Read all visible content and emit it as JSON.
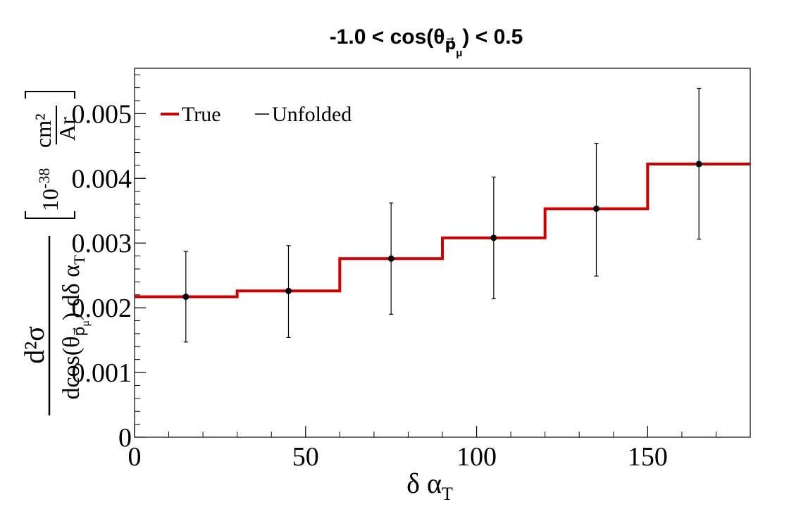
{
  "chart_data": {
    "type": "step",
    "title_main": "-1.0 < cos(θ",
    "title_sub": "p⃗",
    "title_subsub": "μ",
    "title_end": ") < 0.5",
    "xlabel_main": "δ α",
    "xlabel_sub": "T",
    "ylabel": {
      "numerator": "d²σ",
      "denominator_a": "dcos(θ",
      "denominator_sub": "p⃗",
      "denominator_subsub": "μ",
      "denominator_b": ") dδ α",
      "denominator_b_sub": "T",
      "unit_prefix": "10",
      "unit_exp": "-38",
      "unit_num": "cm²",
      "unit_den": "Ar"
    },
    "xlim": [
      0,
      180
    ],
    "ylim": [
      0,
      0.0057
    ],
    "xticks": [
      0,
      50,
      100,
      150
    ],
    "xtick_labels": [
      "0",
      "50",
      "100",
      "150"
    ],
    "yticks": [
      0,
      0.001,
      0.002,
      0.003,
      0.004,
      0.005
    ],
    "ytick_labels": [
      "0",
      "0.001",
      "0.002",
      "0.003",
      "0.004",
      "0.005"
    ],
    "bin_edges": [
      0,
      30,
      60,
      90,
      120,
      150,
      180
    ],
    "series": [
      {
        "name": "True",
        "color": "#cc0000",
        "values": [
          0.00217,
          0.00226,
          0.00276,
          0.00308,
          0.00353,
          0.00422
        ]
      },
      {
        "name": "Unfolded",
        "color": "#000000",
        "x": [
          15,
          45,
          75,
          105,
          135,
          165
        ],
        "values": [
          0.00217,
          0.00226,
          0.00276,
          0.00308,
          0.00353,
          0.00422
        ],
        "err_low": [
          0.00147,
          0.00154,
          0.0019,
          0.00214,
          0.00249,
          0.00306
        ],
        "err_high": [
          0.00287,
          0.00296,
          0.00362,
          0.00402,
          0.00454,
          0.00539
        ]
      }
    ],
    "legend_position": "top-left",
    "grid": false
  }
}
